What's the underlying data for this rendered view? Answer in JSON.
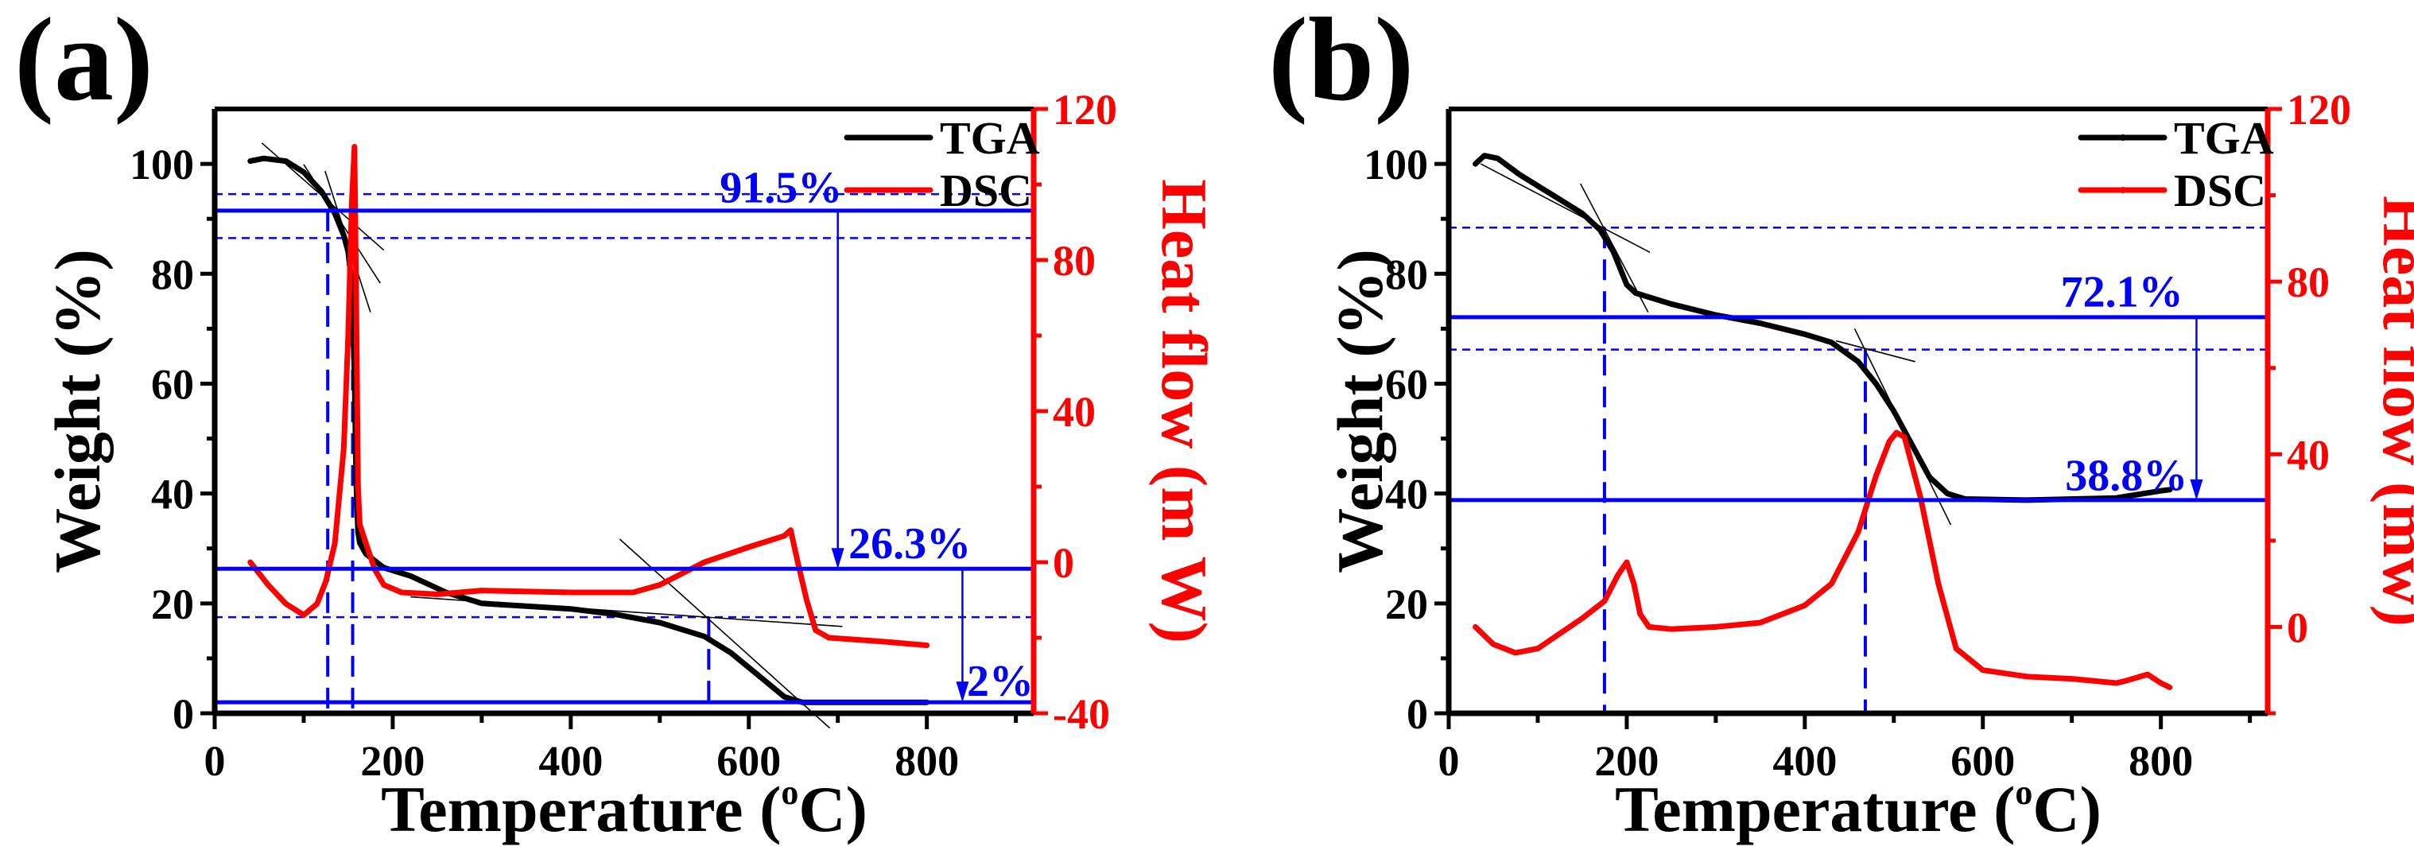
{
  "chart_data": [
    {
      "type": "line",
      "panel_label": "(a)",
      "xlabel_main": "Temperature (",
      "xlabel_sup": "o",
      "xlabel_end": "C)",
      "ylabel": "Weight (%)",
      "y2label": "Heat flow (m W)",
      "xlim": [
        0,
        920
      ],
      "ylim": [
        0,
        110
      ],
      "y2lim": [
        -40,
        120
      ],
      "xticks": [
        0,
        200,
        400,
        600,
        800
      ],
      "yticks": [
        0,
        20,
        40,
        60,
        80,
        100
      ],
      "y2ticks": [
        -40,
        0,
        40,
        80,
        120
      ],
      "legend": [
        "TGA",
        "DSC"
      ],
      "legend_position": "top-right",
      "colors": {
        "tga": "#000000",
        "dsc": "#ff0000",
        "annotation": "#0000ff"
      },
      "series": [
        {
          "name": "TGA",
          "axis": "left",
          "x": [
            40,
            55,
            80,
            100,
            120,
            135,
            145,
            150,
            154,
            157,
            159,
            161,
            163,
            170,
            190,
            220,
            260,
            300,
            350,
            400,
            450,
            500,
            550,
            580,
            610,
            640,
            660,
            700,
            800
          ],
          "y": [
            100.5,
            101,
            100.5,
            98.5,
            95,
            91,
            87,
            84,
            78,
            62,
            42,
            33,
            31,
            29,
            26.5,
            25,
            22,
            20,
            19.5,
            19,
            18,
            16.5,
            14,
            11,
            7,
            3,
            2,
            2,
            2
          ]
        },
        {
          "name": "DSC",
          "axis": "right",
          "x": [
            40,
            60,
            80,
            100,
            115,
            125,
            135,
            145,
            150,
            154,
            157,
            159,
            161,
            163,
            170,
            180,
            190,
            210,
            250,
            300,
            400,
            470,
            500,
            550,
            600,
            640,
            647,
            655,
            665,
            675,
            690,
            750,
            800
          ],
          "y": [
            0,
            -6,
            -11,
            -14,
            -11,
            -5,
            5,
            30,
            60,
            95,
            110,
            70,
            20,
            10,
            5,
            -2,
            -6,
            -8,
            -8.5,
            -7.5,
            -8,
            -8,
            -6,
            0,
            4,
            7,
            8.5,
            0,
            -10,
            -18,
            -20,
            -21,
            -22
          ]
        }
      ],
      "hlines_solid": [
        91.5,
        26.3,
        2
      ],
      "hlines_dashed": [
        94.5,
        86.5,
        17.5
      ],
      "vlines_dashed": [
        {
          "x": 127,
          "y": 91.5
        },
        {
          "x": 155,
          "y": 91.5
        },
        {
          "x": 555,
          "y": 17.5
        }
      ],
      "arrows": [
        {
          "x": 700,
          "from": 91.5,
          "to": 26.3
        },
        {
          "x": 840,
          "from": 26.3,
          "to": 2
        }
      ],
      "tangents": [
        [
          [
            53,
            103.8
          ],
          [
            190,
            84.3
          ]
        ],
        [
          [
            100,
            99.9
          ],
          [
            186,
            78.3
          ]
        ],
        [
          [
            124,
            98.7
          ],
          [
            175,
            73
          ]
        ],
        [
          [
            220,
            21.2
          ],
          [
            705,
            15.8
          ]
        ],
        [
          [
            455,
            31.7
          ],
          [
            691,
            -2.7
          ]
        ]
      ],
      "labels": [
        {
          "text": "91.5%",
          "x": 705,
          "y": 93,
          "anchor": "end"
        },
        {
          "text": "26.3%",
          "x": 712,
          "y": 28.2,
          "anchor": "start"
        },
        {
          "text": "2%",
          "x": 845,
          "y": 3.2,
          "anchor": "start"
        }
      ]
    },
    {
      "type": "line",
      "panel_label": "(b)",
      "xlabel_main": "Temperature (",
      "xlabel_sup": "o",
      "xlabel_end": "C)",
      "ylabel": "Weight (%)",
      "y2label": "Heat flow (mw)",
      "xlim": [
        0,
        920
      ],
      "ylim": [
        0,
        110
      ],
      "y2lim": [
        -20,
        120
      ],
      "xticks": [
        0,
        200,
        400,
        600,
        800
      ],
      "yticks": [
        0,
        20,
        40,
        60,
        80,
        100
      ],
      "y2ticks": [
        0,
        40,
        80,
        120
      ],
      "legend": [
        "TGA",
        "DSC"
      ],
      "legend_position": "top-right",
      "colors": {
        "tga": "#000000",
        "dsc": "#ff0000",
        "annotation": "#0000ff"
      },
      "series": [
        {
          "name": "TGA",
          "axis": "left",
          "x": [
            30,
            40,
            55,
            80,
            120,
            150,
            170,
            185,
            200,
            210,
            250,
            300,
            350,
            400,
            430,
            460,
            480,
            500,
            520,
            540,
            560,
            580,
            650,
            750,
            800,
            810
          ],
          "y": [
            100,
            101.5,
            101,
            98,
            94,
            91,
            88,
            84,
            78,
            76.5,
            74.5,
            72.5,
            71,
            69,
            67.5,
            64,
            60,
            55,
            49,
            43,
            40,
            39,
            38.8,
            39.2,
            40.5,
            40.7
          ]
        },
        {
          "name": "DSC",
          "axis": "right",
          "x": [
            30,
            50,
            75,
            100,
            150,
            175,
            190,
            200,
            208,
            215,
            225,
            250,
            300,
            350,
            400,
            430,
            460,
            480,
            495,
            503,
            512,
            530,
            550,
            570,
            600,
            650,
            700,
            750,
            760,
            785,
            800,
            810
          ],
          "y": [
            0,
            -4,
            -6,
            -5,
            2,
            6,
            12,
            15,
            10,
            3,
            0,
            -0.5,
            0,
            1,
            5,
            10,
            22,
            35,
            43,
            45,
            44,
            30,
            10,
            -5,
            -10,
            -11.5,
            -12,
            -13,
            -12.5,
            -11,
            -13,
            -14
          ]
        }
      ],
      "hlines_solid": [
        72.1,
        38.8
      ],
      "hlines_dashed": [
        88.4,
        66.2
      ],
      "vlines_dashed": [
        {
          "x": 175,
          "y": 88.4
        },
        {
          "x": 468,
          "y": 66.2
        }
      ],
      "arrows": [
        {
          "x": 840,
          "from": 72.1,
          "to": 38.8
        }
      ],
      "tangents": [
        [
          [
            36,
            100
          ],
          [
            226,
            83.9
          ]
        ],
        [
          [
            148,
            96.4
          ],
          [
            224,
            73
          ]
        ],
        [
          [
            456,
            70
          ],
          [
            564,
            34.3
          ]
        ],
        [
          [
            435,
            67.8
          ],
          [
            524,
            64
          ]
        ]
      ],
      "labels": [
        {
          "text": "72.1%",
          "x": 825,
          "y": 74,
          "anchor": "end"
        },
        {
          "text": "38.8%",
          "x": 830,
          "y": 40.6,
          "anchor": "end"
        }
      ]
    }
  ]
}
